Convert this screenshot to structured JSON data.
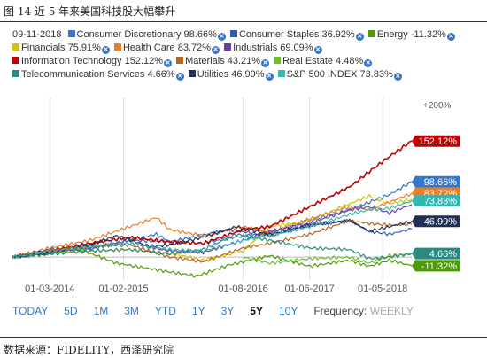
{
  "figure_title": "图 14 近 5 年来美国科技股大幅攀升",
  "source": "数据来源：FIDELITY，西泽研究院",
  "legend_date": "09-11-2018",
  "ranges": [
    "TODAY",
    "5D",
    "1M",
    "3M",
    "YTD",
    "1Y",
    "3Y",
    "5Y",
    "10Y"
  ],
  "active_range": "5Y",
  "frequency_label": "Frequency:",
  "frequency_value": "WEEKLY",
  "chart_data": {
    "type": "line",
    "title": "",
    "y_unit": "%",
    "ylim": [
      -30,
      200
    ],
    "yticks": [
      {
        "value": 200,
        "label": "+200%"
      }
    ],
    "x_start": "2013-09-11",
    "x_end": "2018-09-11",
    "xticks": [
      "01-03-2014",
      "01-02-2015",
      "01-08-2016",
      "01-06-2017",
      "01-05-2018"
    ],
    "grid": "vertical",
    "baseline": 0,
    "series": [
      {
        "name": "Consumer Discretionary",
        "final_label": "98.66%",
        "color": "#3576c9",
        "end_tag": "98.66%",
        "points": [
          [
            "2013-09-11",
            0
          ],
          [
            "2014-03-01",
            8
          ],
          [
            "2014-09-01",
            10
          ],
          [
            "2015-03-01",
            22
          ],
          [
            "2015-07-01",
            30
          ],
          [
            "2015-09-01",
            20
          ],
          [
            "2016-02-01",
            18
          ],
          [
            "2016-06-01",
            25
          ],
          [
            "2016-12-01",
            32
          ],
          [
            "2017-06-01",
            48
          ],
          [
            "2017-12-01",
            62
          ],
          [
            "2018-03-01",
            72
          ],
          [
            "2018-06-01",
            82
          ],
          [
            "2018-09-11",
            98.66
          ]
        ]
      },
      {
        "name": "Consumer Staples",
        "final_label": "36.92%",
        "color": "#2f5fb3",
        "end_tag": null,
        "points": [
          [
            "2013-09-11",
            0
          ],
          [
            "2014-03-01",
            5
          ],
          [
            "2014-09-01",
            12
          ],
          [
            "2015-03-01",
            22
          ],
          [
            "2015-09-01",
            20
          ],
          [
            "2016-06-01",
            36
          ],
          [
            "2016-12-01",
            28
          ],
          [
            "2017-06-01",
            42
          ],
          [
            "2017-12-01",
            48
          ],
          [
            "2018-03-01",
            34
          ],
          [
            "2018-06-01",
            30
          ],
          [
            "2018-09-11",
            36.92
          ]
        ]
      },
      {
        "name": "Energy",
        "final_label": "-11.32%",
        "color": "#4e9a06",
        "end_tag": "-11.32%",
        "points": [
          [
            "2013-09-11",
            0
          ],
          [
            "2014-03-01",
            6
          ],
          [
            "2014-06-01",
            14
          ],
          [
            "2014-10-01",
            2
          ],
          [
            "2015-01-01",
            -8
          ],
          [
            "2015-08-01",
            -18
          ],
          [
            "2016-01-01",
            -25
          ],
          [
            "2016-06-01",
            -10
          ],
          [
            "2016-12-01",
            2
          ],
          [
            "2017-06-01",
            -12
          ],
          [
            "2017-12-01",
            -4
          ],
          [
            "2018-03-01",
            -12
          ],
          [
            "2018-06-01",
            -4
          ],
          [
            "2018-09-11",
            -11.32
          ]
        ]
      },
      {
        "name": "Financials",
        "final_label": "75.91%",
        "color": "#d4c200",
        "end_tag": null,
        "points": [
          [
            "2013-09-11",
            0
          ],
          [
            "2014-03-01",
            6
          ],
          [
            "2014-09-01",
            8
          ],
          [
            "2015-03-01",
            10
          ],
          [
            "2015-09-01",
            5
          ],
          [
            "2016-02-01",
            -4
          ],
          [
            "2016-08-01",
            8
          ],
          [
            "2016-12-01",
            40
          ],
          [
            "2017-06-01",
            48
          ],
          [
            "2017-12-01",
            70
          ],
          [
            "2018-03-01",
            80
          ],
          [
            "2018-06-01",
            70
          ],
          [
            "2018-09-11",
            75.91
          ]
        ]
      },
      {
        "name": "Health Care",
        "final_label": "83.72%",
        "color": "#e87d2a",
        "end_tag": "83.72%",
        "points": [
          [
            "2013-09-11",
            0
          ],
          [
            "2014-03-01",
            12
          ],
          [
            "2014-09-01",
            22
          ],
          [
            "2015-03-01",
            40
          ],
          [
            "2015-07-01",
            52
          ],
          [
            "2015-09-01",
            36
          ],
          [
            "2016-02-01",
            28
          ],
          [
            "2016-08-01",
            40
          ],
          [
            "2016-12-01",
            32
          ],
          [
            "2017-06-01",
            50
          ],
          [
            "2017-12-01",
            66
          ],
          [
            "2018-03-01",
            62
          ],
          [
            "2018-06-01",
            72
          ],
          [
            "2018-09-11",
            83.72
          ]
        ]
      },
      {
        "name": "Industrials",
        "final_label": "69.09%",
        "color": "#6c3fa8",
        "end_tag": null,
        "points": [
          [
            "2013-09-11",
            0
          ],
          [
            "2014-03-01",
            10
          ],
          [
            "2014-09-01",
            14
          ],
          [
            "2015-03-01",
            18
          ],
          [
            "2015-09-01",
            8
          ],
          [
            "2016-02-01",
            6
          ],
          [
            "2016-08-01",
            22
          ],
          [
            "2016-12-01",
            34
          ],
          [
            "2017-06-01",
            44
          ],
          [
            "2017-12-01",
            62
          ],
          [
            "2018-03-01",
            66
          ],
          [
            "2018-06-01",
            58
          ],
          [
            "2018-09-11",
            69.09
          ]
        ]
      },
      {
        "name": "Information Technology",
        "final_label": "152.12%",
        "color": "#c00000",
        "end_tag": "152.12%",
        "points": [
          [
            "2013-09-11",
            0
          ],
          [
            "2014-03-01",
            8
          ],
          [
            "2014-09-01",
            18
          ],
          [
            "2015-03-01",
            26
          ],
          [
            "2015-09-01",
            20
          ],
          [
            "2016-02-01",
            18
          ],
          [
            "2016-08-01",
            36
          ],
          [
            "2016-12-01",
            40
          ],
          [
            "2017-06-01",
            66
          ],
          [
            "2017-12-01",
            92
          ],
          [
            "2018-03-01",
            112
          ],
          [
            "2018-06-01",
            132
          ],
          [
            "2018-09-11",
            152.12
          ]
        ]
      },
      {
        "name": "Materials",
        "final_label": "43.21%",
        "color": "#b5651d",
        "end_tag": null,
        "points": [
          [
            "2013-09-11",
            0
          ],
          [
            "2014-03-01",
            8
          ],
          [
            "2014-09-01",
            14
          ],
          [
            "2015-03-01",
            16
          ],
          [
            "2015-09-01",
            0
          ],
          [
            "2016-02-01",
            -6
          ],
          [
            "2016-08-01",
            12
          ],
          [
            "2016-12-01",
            18
          ],
          [
            "2017-06-01",
            30
          ],
          [
            "2017-12-01",
            48
          ],
          [
            "2018-03-01",
            44
          ],
          [
            "2018-06-01",
            42
          ],
          [
            "2018-09-11",
            43.21
          ]
        ]
      },
      {
        "name": "Real Estate",
        "final_label": "4.48%",
        "color": "#6abf2f",
        "end_tag": null,
        "points": [
          [
            "2016-08-01",
            0
          ],
          [
            "2016-12-01",
            -8
          ],
          [
            "2017-06-01",
            -2
          ],
          [
            "2017-12-01",
            0
          ],
          [
            "2018-03-01",
            -8
          ],
          [
            "2018-06-01",
            2
          ],
          [
            "2018-09-11",
            4.48
          ]
        ]
      },
      {
        "name": "Telecommunication Services",
        "final_label": "4.66%",
        "color": "#2a8a7e",
        "end_tag": "4.66%",
        "points": [
          [
            "2013-09-11",
            0
          ],
          [
            "2014-03-01",
            4
          ],
          [
            "2014-09-01",
            8
          ],
          [
            "2015-03-01",
            10
          ],
          [
            "2015-09-01",
            4
          ],
          [
            "2016-02-01",
            10
          ],
          [
            "2016-07-01",
            30
          ],
          [
            "2016-12-01",
            22
          ],
          [
            "2017-06-01",
            12
          ],
          [
            "2017-12-01",
            10
          ],
          [
            "2018-03-01",
            -2
          ],
          [
            "2018-06-01",
            0
          ],
          [
            "2018-09-11",
            4.66
          ]
        ]
      },
      {
        "name": "Utilities",
        "final_label": "46.99%",
        "color": "#1f2f55",
        "end_tag": "46.99%",
        "points": [
          [
            "2013-09-11",
            0
          ],
          [
            "2014-03-01",
            6
          ],
          [
            "2014-09-01",
            16
          ],
          [
            "2015-01-01",
            28
          ],
          [
            "2015-06-01",
            14
          ],
          [
            "2015-09-01",
            16
          ],
          [
            "2016-02-01",
            26
          ],
          [
            "2016-07-01",
            40
          ],
          [
            "2016-12-01",
            30
          ],
          [
            "2017-06-01",
            42
          ],
          [
            "2017-12-01",
            48
          ],
          [
            "2018-03-01",
            34
          ],
          [
            "2018-06-01",
            40
          ],
          [
            "2018-09-11",
            46.99
          ]
        ]
      },
      {
        "name": "S&P 500 INDEX",
        "final_label": "73.83%",
        "color": "#33b7b0",
        "end_tag": "73.83%",
        "points": [
          [
            "2013-09-11",
            0
          ],
          [
            "2014-03-01",
            8
          ],
          [
            "2014-09-01",
            14
          ],
          [
            "2015-03-01",
            18
          ],
          [
            "2015-09-01",
            10
          ],
          [
            "2016-02-01",
            8
          ],
          [
            "2016-08-01",
            22
          ],
          [
            "2016-12-01",
            28
          ],
          [
            "2017-06-01",
            40
          ],
          [
            "2017-12-01",
            56
          ],
          [
            "2018-03-01",
            62
          ],
          [
            "2018-06-01",
            64
          ],
          [
            "2018-09-11",
            73.83
          ]
        ]
      }
    ]
  }
}
